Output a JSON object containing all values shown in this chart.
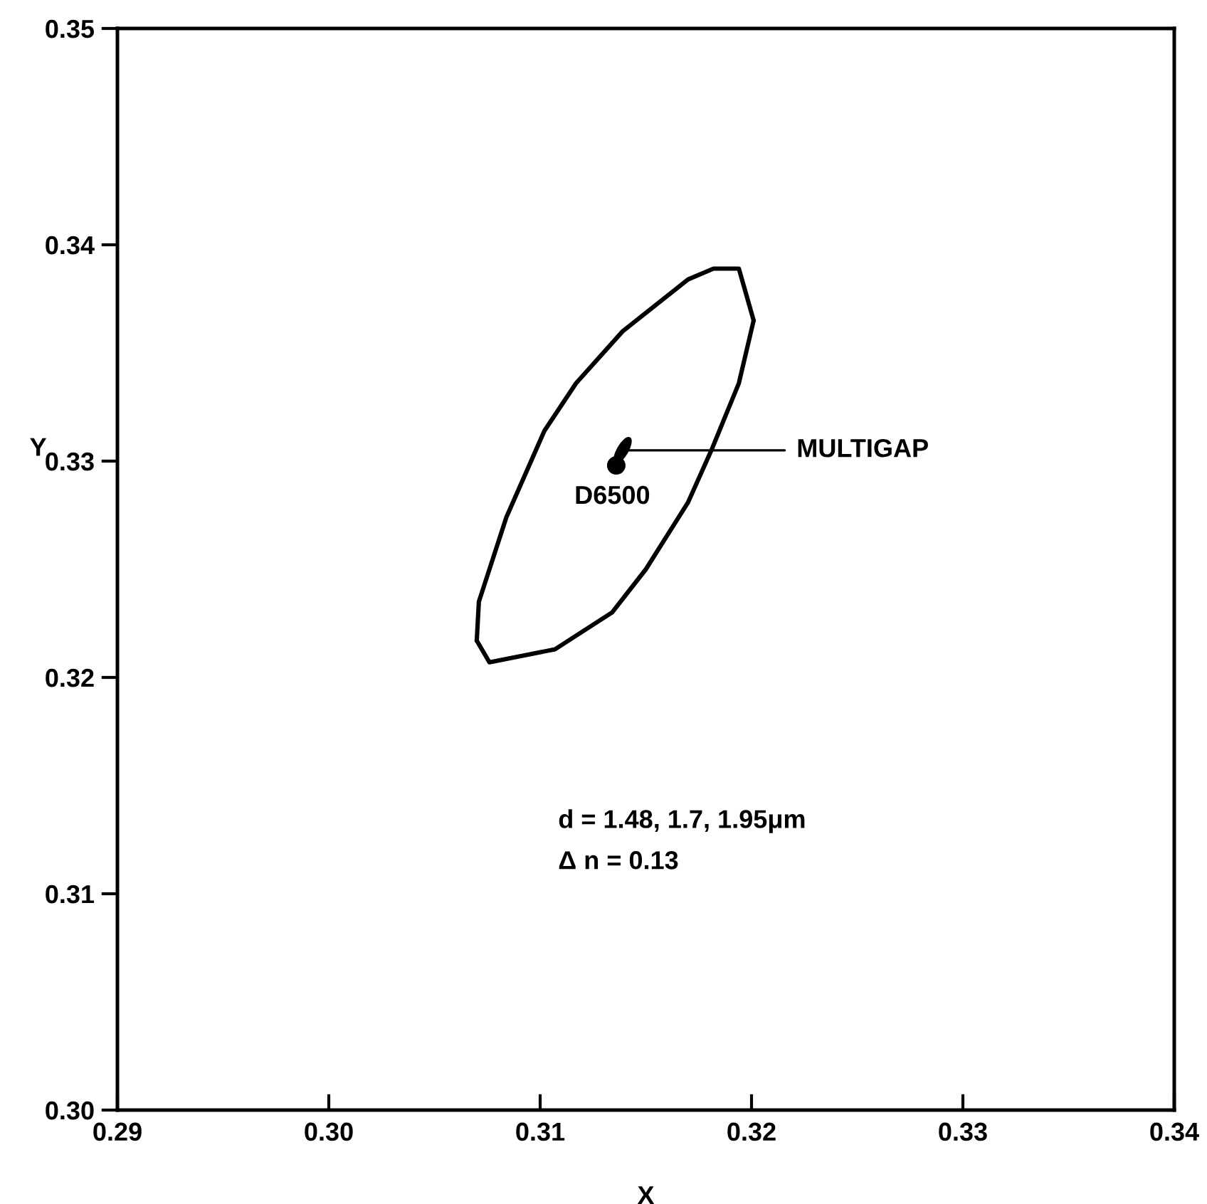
{
  "chart_data": {
    "type": "line",
    "xlabel": "X",
    "ylabel": "Y",
    "xlim": [
      0.29,
      0.34
    ],
    "ylim": [
      0.3,
      0.35
    ],
    "xticks": [
      {
        "value": 0.29,
        "label": "0.29"
      },
      {
        "value": 0.3,
        "label": "0.30"
      },
      {
        "value": 0.31,
        "label": "0.31"
      },
      {
        "value": 0.32,
        "label": "0.32"
      },
      {
        "value": 0.33,
        "label": "0.33"
      },
      {
        "value": 0.34,
        "label": "0.34"
      }
    ],
    "yticks": [
      {
        "value": 0.3,
        "label": "0.30"
      },
      {
        "value": 0.31,
        "label": "0.31"
      },
      {
        "value": 0.32,
        "label": "0.32"
      },
      {
        "value": 0.33,
        "label": "0.33"
      },
      {
        "value": 0.34,
        "label": "0.34"
      },
      {
        "value": 0.35,
        "label": "0.35"
      }
    ],
    "grid": false,
    "series": [
      {
        "color": "#000000",
        "x": [
          0.307,
          0.3071,
          0.3084,
          0.3102,
          0.3117,
          0.3139,
          0.317,
          0.3182,
          0.3194,
          0.3201
        ],
        "values": [
          0.3217,
          0.3235,
          0.3274,
          0.3314,
          0.3336,
          0.336,
          0.3384,
          0.3389,
          0.3389,
          0.3365
        ]
      },
      {
        "color": "#000000",
        "x": [
          0.307,
          0.3076,
          0.3107,
          0.3134,
          0.315,
          0.317,
          0.3181,
          0.3194,
          0.3201
        ],
        "values": [
          0.3217,
          0.3207,
          0.3213,
          0.323,
          0.325,
          0.3281,
          0.3305,
          0.3336,
          0.3365
        ]
      },
      {
        "type": "scatter",
        "marker": "diamond",
        "color": "#000000",
        "x": [
          0.3139
        ],
        "values": [
          0.3305
        ]
      },
      {
        "type": "scatter",
        "marker": "circle",
        "color": "#000000",
        "x": [
          0.3136
        ],
        "values": [
          0.3298
        ]
      }
    ],
    "annotations": [
      {
        "text": "MULTIGAP",
        "x": 0.3139,
        "y": 0.3305
      },
      {
        "text": "D6500",
        "x": 0.3136,
        "y": 0.3298
      },
      "d = 1.48, 1.7, 1.95μm",
      "Δ n = 0.13"
    ]
  }
}
